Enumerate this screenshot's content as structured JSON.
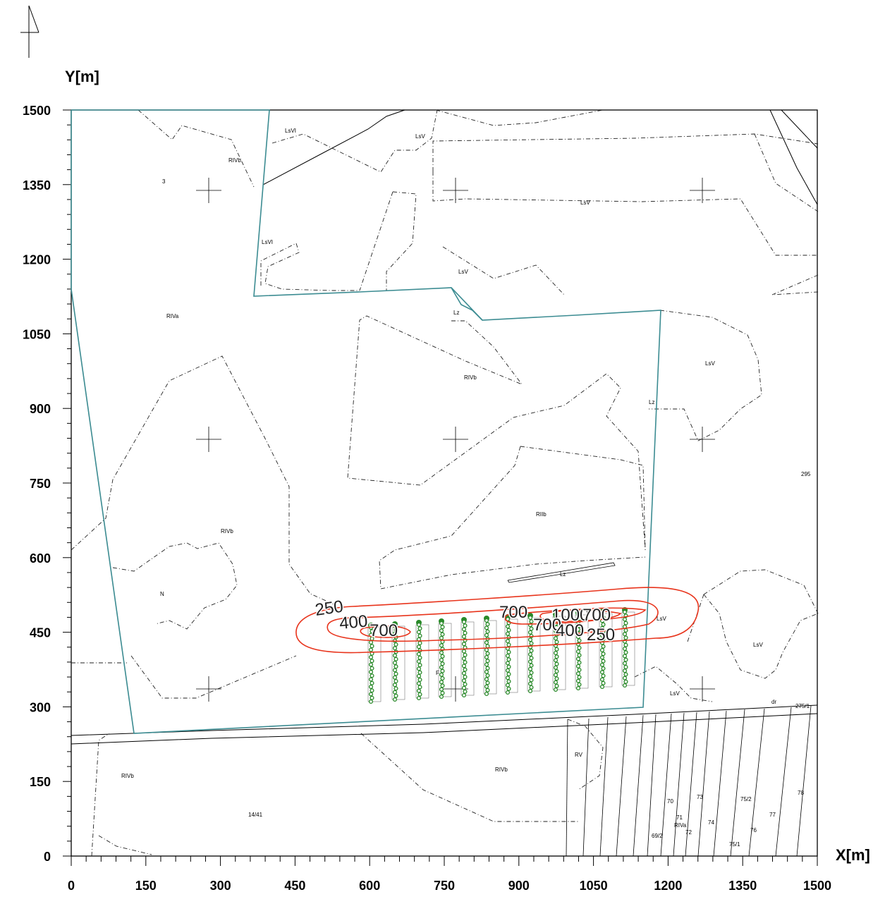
{
  "axes": {
    "x_title": "X[m]",
    "y_title": "Y[m]",
    "x_ticks": [
      "0",
      "150",
      "300",
      "450",
      "600",
      "750",
      "900",
      "1050",
      "1200",
      "1350",
      "1500"
    ],
    "y_ticks": [
      "0",
      "150",
      "300",
      "450",
      "600",
      "750",
      "900",
      "1050",
      "1200",
      "1350",
      "1500"
    ]
  },
  "contour_labels": [
    "250",
    "400",
    "700",
    "700",
    "1000",
    "700",
    "700",
    "400",
    "250"
  ],
  "parcel_labels": [
    "LsVI",
    "LsV",
    "RIVb",
    "3",
    "LsV",
    "LsVI",
    "LsV",
    "Lz",
    "RIVa",
    "LsV",
    "RIVb",
    "Lz",
    "RIIb",
    "295",
    "RIVb",
    "N",
    "Lz",
    "LsV",
    "LsV",
    "LsV",
    "F",
    "275/1",
    "dr",
    "RIVb",
    "RIVb",
    "RV",
    "14/41",
    "70",
    "73",
    "75/2",
    "78",
    "71",
    "RIVa",
    "72",
    "74",
    "77",
    "69/2",
    "76",
    "75/1"
  ],
  "colors": {
    "contour": "#e8341c",
    "boundary": "#3c8c92",
    "turbines": "#2a8a2a"
  }
}
